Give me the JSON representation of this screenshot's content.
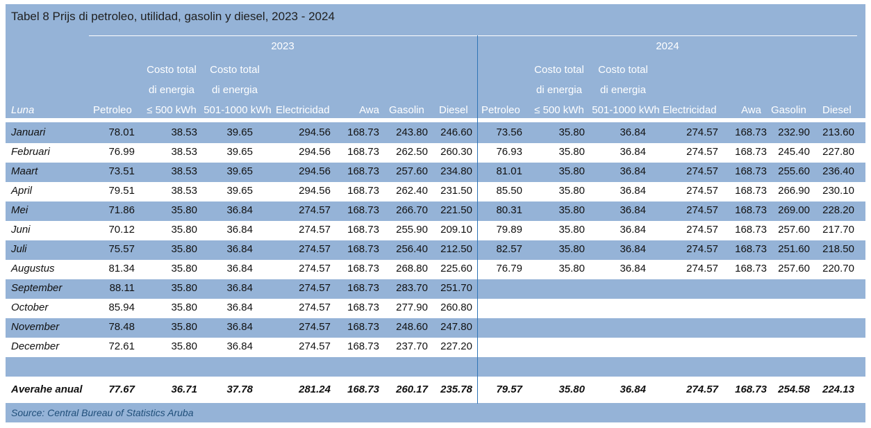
{
  "title": "Tabel 8  Prijs di petroleo, utilidad, gasolin y diesel, 2023 - 2024",
  "years": [
    "2023",
    "2024"
  ],
  "columns": {
    "month": "Luna",
    "petroleo": "Petroleo",
    "costo_low_line1": "Costo total",
    "costo_low_line2": "di energia",
    "costo_low_line3": "≤ 500 kWh",
    "costo_high_line1": "Costo total",
    "costo_high_line2": "di energia",
    "costo_high_line3": "501-1000 kWh",
    "electricidad": "Electricidad",
    "awa": "Awa",
    "gasolin": "Gasolin",
    "diesel": "Diesel"
  },
  "rows": [
    {
      "month": "Januari",
      "y2023": [
        "78.01",
        "38.53",
        "39.65",
        "294.56",
        "168.73",
        "243.80",
        "246.60"
      ],
      "y2024": [
        "73.56",
        "35.80",
        "36.84",
        "274.57",
        "168.73",
        "232.90",
        "213.60"
      ]
    },
    {
      "month": "Februari",
      "y2023": [
        "76.99",
        "38.53",
        "39.65",
        "294.56",
        "168.73",
        "262.50",
        "260.30"
      ],
      "y2024": [
        "76.93",
        "35.80",
        "36.84",
        "274.57",
        "168.73",
        "245.40",
        "227.80"
      ]
    },
    {
      "month": "Maart",
      "y2023": [
        "73.51",
        "38.53",
        "39.65",
        "294.56",
        "168.73",
        "257.60",
        "234.80"
      ],
      "y2024": [
        "81.01",
        "35.80",
        "36.84",
        "274.57",
        "168.73",
        "255.60",
        "236.40"
      ]
    },
    {
      "month": "April",
      "y2023": [
        "79.51",
        "38.53",
        "39.65",
        "294.56",
        "168.73",
        "262.40",
        "231.50"
      ],
      "y2024": [
        "85.50",
        "35.80",
        "36.84",
        "274.57",
        "168.73",
        "266.90",
        "230.10"
      ]
    },
    {
      "month": "Mei",
      "y2023": [
        "71.86",
        "35.80",
        "36.84",
        "274.57",
        "168.73",
        "266.70",
        "221.50"
      ],
      "y2024": [
        "80.31",
        "35.80",
        "36.84",
        "274.57",
        "168.73",
        "269.00",
        "228.20"
      ]
    },
    {
      "month": "Juni",
      "y2023": [
        "70.12",
        "35.80",
        "36.84",
        "274.57",
        "168.73",
        "255.90",
        "209.10"
      ],
      "y2024": [
        "79.89",
        "35.80",
        "36.84",
        "274.57",
        "168.73",
        "257.60",
        "217.70"
      ]
    },
    {
      "month": "Juli",
      "y2023": [
        "75.57",
        "35.80",
        "36.84",
        "274.57",
        "168.73",
        "256.40",
        "212.50"
      ],
      "y2024": [
        "82.57",
        "35.80",
        "36.84",
        "274.57",
        "168.73",
        "251.60",
        "218.50"
      ]
    },
    {
      "month": "Augustus",
      "y2023": [
        "81.34",
        "35.80",
        "36.84",
        "274.57",
        "168.73",
        "268.80",
        "225.60"
      ],
      "y2024": [
        "76.79",
        "35.80",
        "36.84",
        "274.57",
        "168.73",
        "257.60",
        "220.70"
      ]
    },
    {
      "month": "September",
      "y2023": [
        "88.11",
        "35.80",
        "36.84",
        "274.57",
        "168.73",
        "283.70",
        "251.70"
      ],
      "y2024": [
        "",
        "",
        "",
        "",
        "",
        "",
        ""
      ]
    },
    {
      "month": "October",
      "y2023": [
        "85.94",
        "35.80",
        "36.84",
        "274.57",
        "168.73",
        "277.90",
        "260.80"
      ],
      "y2024": [
        "",
        "",
        "",
        "",
        "",
        "",
        ""
      ]
    },
    {
      "month": "November",
      "y2023": [
        "78.48",
        "35.80",
        "36.84",
        "274.57",
        "168.73",
        "248.60",
        "247.80"
      ],
      "y2024": [
        "",
        "",
        "",
        "",
        "",
        "",
        ""
      ]
    },
    {
      "month": "December",
      "y2023": [
        "72.61",
        "35.80",
        "36.84",
        "274.57",
        "168.73",
        "237.70",
        "227.20"
      ],
      "y2024": [
        "",
        "",
        "",
        "",
        "",
        "",
        ""
      ]
    }
  ],
  "average": {
    "label": "Averahe anual",
    "y2023": [
      "77.67",
      "36.71",
      "37.78",
      "281.24",
      "168.73",
      "260.17",
      "235.78"
    ],
    "y2024": [
      "79.57",
      "35.80",
      "36.84",
      "274.57",
      "168.73",
      "254.58",
      "224.13"
    ]
  },
  "source": "Source: Central Bureau of Statistics Aruba"
}
